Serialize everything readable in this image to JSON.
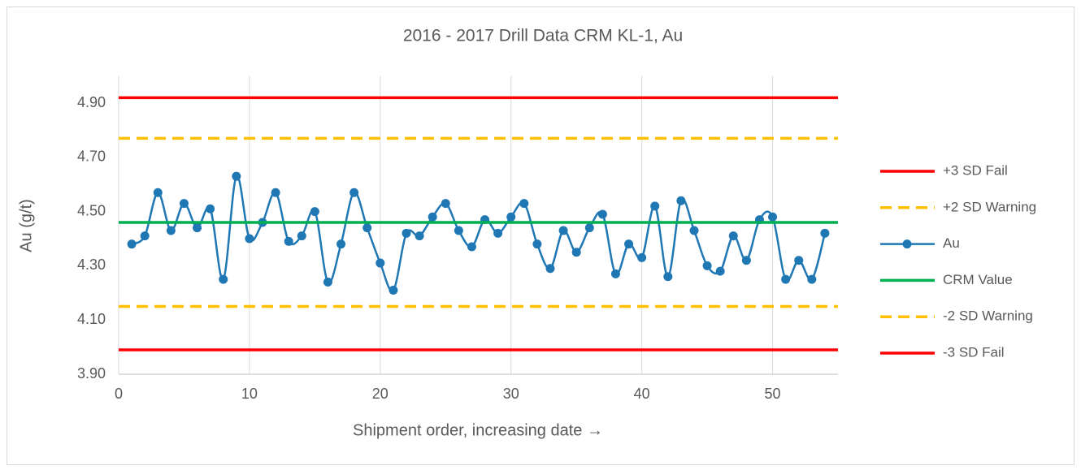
{
  "chart_data": {
    "type": "line",
    "title": "2016 - 2017 Drill Data CRM KL-1, Au",
    "x_label": "Shipment order, increasing date →",
    "y_label": "Au (g/t)",
    "xlim": [
      0,
      55
    ],
    "xticks": [
      0,
      10,
      20,
      30,
      40,
      50
    ],
    "ylim": [
      3.9,
      5.0
    ],
    "yticks": [
      {
        "value": 3.9,
        "label": "3.90"
      },
      {
        "value": 4.1,
        "label": "4.10"
      },
      {
        "value": 4.3,
        "label": "4.30"
      },
      {
        "value": 4.5,
        "label": "4.50"
      },
      {
        "value": 4.7,
        "label": "4.70"
      },
      {
        "value": 4.9,
        "label": "4.90"
      }
    ],
    "grid": "x",
    "legend": "right",
    "series": [
      {
        "name": "+3 SD Fail",
        "color": "#ff0000",
        "dashed": false,
        "marker": false,
        "smooth": false,
        "x": [
          0,
          55
        ],
        "values": [
          4.92,
          4.92
        ]
      },
      {
        "name": "+2 SD Warning",
        "color": "#ffc000",
        "dashed": true,
        "marker": false,
        "smooth": false,
        "x": [
          0,
          55
        ],
        "values": [
          4.77,
          4.77
        ]
      },
      {
        "name": "Au",
        "color": "#1f77b4",
        "dashed": false,
        "marker": true,
        "smooth": true,
        "x": [
          1,
          2,
          3,
          4,
          5,
          6,
          7,
          8,
          9,
          10,
          11,
          12,
          13,
          14,
          15,
          16,
          17,
          18,
          19,
          20,
          21,
          22,
          23,
          24,
          25,
          26,
          27,
          28,
          29,
          30,
          31,
          32,
          33,
          34,
          35,
          36,
          37,
          38,
          39,
          40,
          41,
          42,
          43,
          44,
          45,
          46,
          47,
          48,
          49,
          50,
          51,
          52,
          53,
          54
        ],
        "values": [
          4.38,
          4.41,
          4.57,
          4.43,
          4.53,
          4.44,
          4.51,
          4.25,
          4.63,
          4.4,
          4.46,
          4.57,
          4.39,
          4.41,
          4.5,
          4.24,
          4.38,
          4.57,
          4.44,
          4.31,
          4.21,
          4.42,
          4.41,
          4.48,
          4.53,
          4.43,
          4.37,
          4.47,
          4.42,
          4.48,
          4.53,
          4.38,
          4.29,
          4.43,
          4.35,
          4.44,
          4.49,
          4.27,
          4.38,
          4.33,
          4.52,
          4.26,
          4.54,
          4.43,
          4.3,
          4.28,
          4.41,
          4.32,
          4.47,
          4.48,
          4.25,
          4.32,
          4.25,
          4.42
        ]
      },
      {
        "name": "CRM Value",
        "color": "#00b050",
        "dashed": false,
        "marker": false,
        "smooth": false,
        "x": [
          0,
          55
        ],
        "values": [
          4.46,
          4.46
        ]
      },
      {
        "name": "-2 SD Warning",
        "color": "#ffc000",
        "dashed": true,
        "marker": false,
        "smooth": false,
        "x": [
          0,
          55
        ],
        "values": [
          4.15,
          4.15
        ]
      },
      {
        "name": "-3 SD Fail",
        "color": "#ff0000",
        "dashed": false,
        "marker": false,
        "smooth": false,
        "x": [
          0,
          55
        ],
        "values": [
          3.99,
          3.99
        ]
      }
    ]
  }
}
